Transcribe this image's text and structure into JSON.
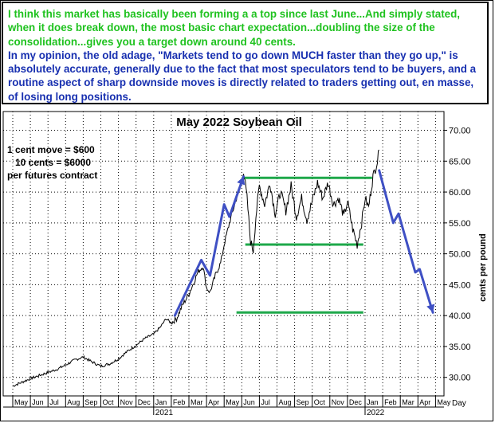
{
  "commentary": {
    "green_text": "I think this market has basically been forming a a top since last June...And simply stated, when it does break down, the most basic chart expectation...doubling the size of the consolidation...gives you a target down around 40 cents.",
    "blue_text": "In my opinion, the old adage, \"Markets tend to go down MUCH faster than they go up,\" is absolutely accurate, generally due to the fact that most speculators tend to be buyers, and a routine aspect of sharp downside moves is directly related to traders getting out, en masse, of losing long positions.",
    "green_color": "#1fc21f",
    "blue_color": "#1830b0"
  },
  "contract_notes": {
    "line1": "1 cent move = $600",
    "line2": "10 cents = $6000",
    "line3": "per futures contract"
  },
  "chart_data": {
    "type": "line",
    "title": "May 2022 Soybean Oil",
    "ylabel": "cents per pound",
    "xlabel": "Day",
    "ylim": [
      27,
      72
    ],
    "y_ticks": [
      "70.00",
      "65.00",
      "60.00",
      "55.00",
      "50.00",
      "45.00",
      "40.00",
      "35.00",
      "30.00"
    ],
    "y_tick_values": [
      70,
      65,
      60,
      55,
      50,
      45,
      40,
      35,
      30
    ],
    "x_months": [
      "May",
      "Jun",
      "Jul",
      "Aug",
      "Sep",
      "Oct",
      "Nov",
      "Dec",
      "Jan",
      "Feb",
      "Mar",
      "Apr",
      "May",
      "Jun",
      "Jul",
      "Aug",
      "Sep",
      "Oct",
      "Nov",
      "Dec",
      "Jan",
      "Feb",
      "Mar",
      "Apr",
      "May"
    ],
    "x_month_index": [
      0,
      1,
      2,
      3,
      4,
      5,
      6,
      7,
      8,
      9,
      10,
      11,
      12,
      13,
      14,
      15,
      16,
      17,
      18,
      19,
      20,
      21,
      22,
      23,
      24
    ],
    "year_labels": [
      {
        "label": "2021",
        "month_index": 8
      },
      {
        "label": "2022",
        "month_index": 20
      }
    ],
    "price_path": [
      {
        "m": 0.0,
        "v": 28.6
      },
      {
        "m": 0.5,
        "v": 29.2
      },
      {
        "m": 1.0,
        "v": 29.8
      },
      {
        "m": 1.5,
        "v": 30.3
      },
      {
        "m": 2.0,
        "v": 30.8
      },
      {
        "m": 2.5,
        "v": 31.3
      },
      {
        "m": 3.0,
        "v": 32.0
      },
      {
        "m": 3.5,
        "v": 32.8
      },
      {
        "m": 4.0,
        "v": 33.3
      },
      {
        "m": 4.5,
        "v": 32.5
      },
      {
        "m": 5.0,
        "v": 31.8
      },
      {
        "m": 5.5,
        "v": 32.2
      },
      {
        "m": 6.0,
        "v": 33.0
      },
      {
        "m": 6.5,
        "v": 34.2
      },
      {
        "m": 7.0,
        "v": 35.2
      },
      {
        "m": 7.5,
        "v": 36.3
      },
      {
        "m": 8.0,
        "v": 37.0
      },
      {
        "m": 8.4,
        "v": 38.2
      },
      {
        "m": 8.7,
        "v": 39.5
      },
      {
        "m": 9.0,
        "v": 38.8
      },
      {
        "m": 9.3,
        "v": 39.5
      },
      {
        "m": 9.6,
        "v": 41.5
      },
      {
        "m": 10.0,
        "v": 43.5
      },
      {
        "m": 10.3,
        "v": 45.5
      },
      {
        "m": 10.5,
        "v": 47.0
      },
      {
        "m": 10.8,
        "v": 48.0
      },
      {
        "m": 11.0,
        "v": 44.5
      },
      {
        "m": 11.2,
        "v": 43.8
      },
      {
        "m": 11.5,
        "v": 46.5
      },
      {
        "m": 11.8,
        "v": 48.5
      },
      {
        "m": 12.0,
        "v": 51.5
      },
      {
        "m": 12.3,
        "v": 55.0
      },
      {
        "m": 12.6,
        "v": 58.0
      },
      {
        "m": 12.9,
        "v": 61.0
      },
      {
        "m": 13.1,
        "v": 63.5
      },
      {
        "m": 13.3,
        "v": 59.0
      },
      {
        "m": 13.5,
        "v": 52.0
      },
      {
        "m": 13.65,
        "v": 50.5
      },
      {
        "m": 13.8,
        "v": 56.0
      },
      {
        "m": 14.0,
        "v": 61.0
      },
      {
        "m": 14.3,
        "v": 58.0
      },
      {
        "m": 14.6,
        "v": 61.5
      },
      {
        "m": 14.9,
        "v": 56.5
      },
      {
        "m": 15.2,
        "v": 60.0
      },
      {
        "m": 15.5,
        "v": 57.0
      },
      {
        "m": 15.8,
        "v": 61.0
      },
      {
        "m": 16.1,
        "v": 56.0
      },
      {
        "m": 16.4,
        "v": 59.0
      },
      {
        "m": 16.7,
        "v": 55.5
      },
      {
        "m": 17.0,
        "v": 58.5
      },
      {
        "m": 17.3,
        "v": 61.5
      },
      {
        "m": 17.6,
        "v": 59.0
      },
      {
        "m": 17.9,
        "v": 61.5
      },
      {
        "m": 18.2,
        "v": 58.0
      },
      {
        "m": 18.5,
        "v": 59.0
      },
      {
        "m": 18.8,
        "v": 56.0
      },
      {
        "m": 19.0,
        "v": 58.5
      },
      {
        "m": 19.3,
        "v": 54.0
      },
      {
        "m": 19.55,
        "v": 51.5
      },
      {
        "m": 19.8,
        "v": 55.0
      },
      {
        "m": 20.0,
        "v": 59.0
      },
      {
        "m": 20.2,
        "v": 57.5
      },
      {
        "m": 20.45,
        "v": 62.5
      },
      {
        "m": 20.7,
        "v": 65.0
      },
      {
        "m": 20.8,
        "v": 66.8
      }
    ],
    "reference_lines": [
      {
        "name": "consolidation-top",
        "value": 62.3,
        "m_from": 13.0,
        "m_to": 20.4
      },
      {
        "name": "consolidation-bottom",
        "value": 51.5,
        "m_from": 13.2,
        "m_to": 19.9
      },
      {
        "name": "target",
        "value": 40.5,
        "m_from": 12.7,
        "m_to": 19.9
      }
    ],
    "annotation_up": [
      {
        "m": 9.2,
        "v": 40.0
      },
      {
        "m": 10.7,
        "v": 49.0
      },
      {
        "m": 11.2,
        "v": 46.5
      },
      {
        "m": 12.0,
        "v": 58.0
      },
      {
        "m": 12.3,
        "v": 56.0
      },
      {
        "m": 13.1,
        "v": 62.5
      }
    ],
    "annotation_down": [
      {
        "m": 20.8,
        "v": 63.5
      },
      {
        "m": 21.6,
        "v": 55.0
      },
      {
        "m": 21.9,
        "v": 56.5
      },
      {
        "m": 22.85,
        "v": 47.0
      },
      {
        "m": 23.1,
        "v": 47.5
      },
      {
        "m": 23.85,
        "v": 40.5
      }
    ],
    "colors": {
      "price": "#000000",
      "reference_lines": "#1ea84a",
      "arrows": "#3f50c4",
      "grid": "#000000"
    },
    "grid": true
  }
}
